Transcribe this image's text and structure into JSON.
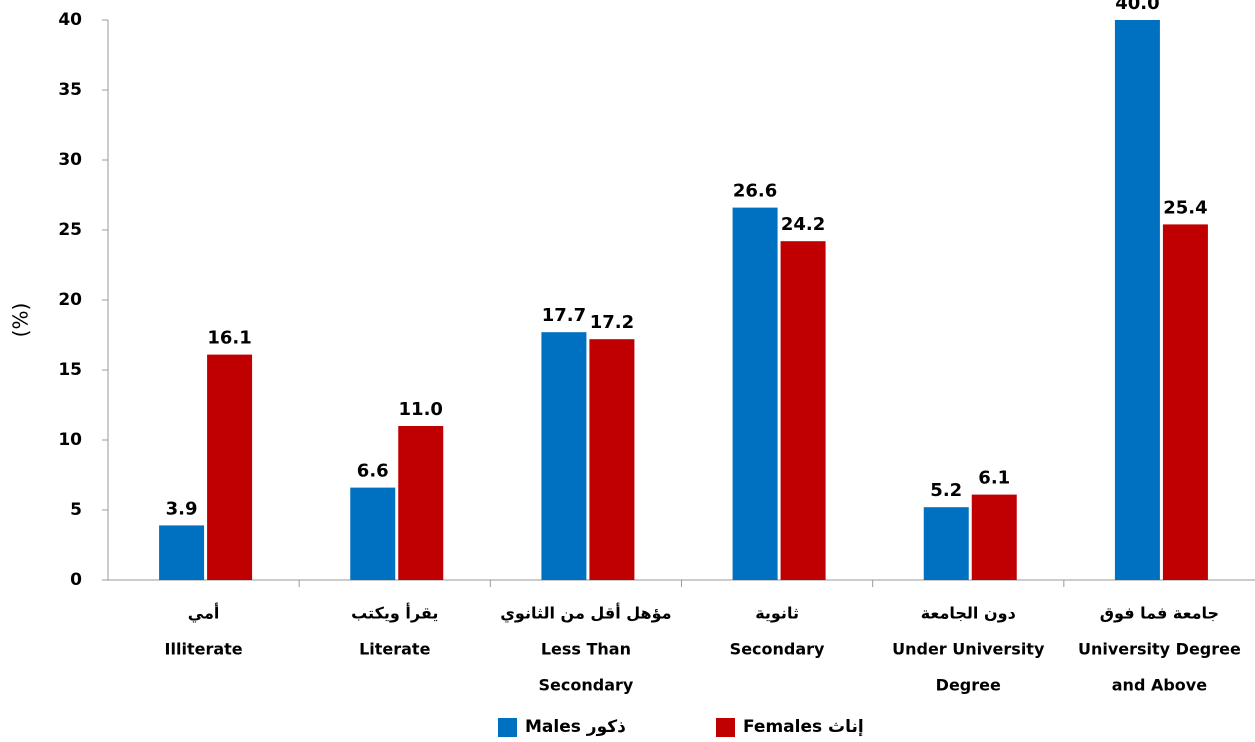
{
  "chart_data": {
    "type": "bar",
    "y_label": "(%)",
    "categories": [
      [
        "أمي",
        "Illiterate"
      ],
      [
        "يقرأ ويكتب",
        "Literate"
      ],
      [
        "مؤهل أقل من الثانوي",
        "Less Than",
        "Secondary"
      ],
      [
        "ثانوية",
        "Secondary"
      ],
      [
        "دون الجامعة",
        "Under University",
        "Degree"
      ],
      [
        "جامعة فما فوق",
        "University Degree",
        "and Above"
      ]
    ],
    "series": [
      {
        "name": "Males ذكور",
        "color": "#0070c0",
        "values": [
          3.9,
          6.6,
          17.7,
          26.6,
          5.2,
          40
        ],
        "value_labels": [
          "3.9",
          "6.6",
          "17.7",
          "26.6",
          "5.2",
          "40.0"
        ]
      },
      {
        "name": "Females إناث",
        "color": "#c00000",
        "values": [
          16.1,
          11,
          17.2,
          24.2,
          6.1,
          25.4
        ],
        "value_labels": [
          "16.1",
          "11.0",
          "17.2",
          "24.2",
          "6.1",
          "25.4"
        ]
      }
    ],
    "ylim": [
      0,
      40
    ],
    "yticks": [
      0,
      5,
      10,
      15,
      20,
      25,
      30,
      35,
      40
    ],
    "grid": false
  }
}
